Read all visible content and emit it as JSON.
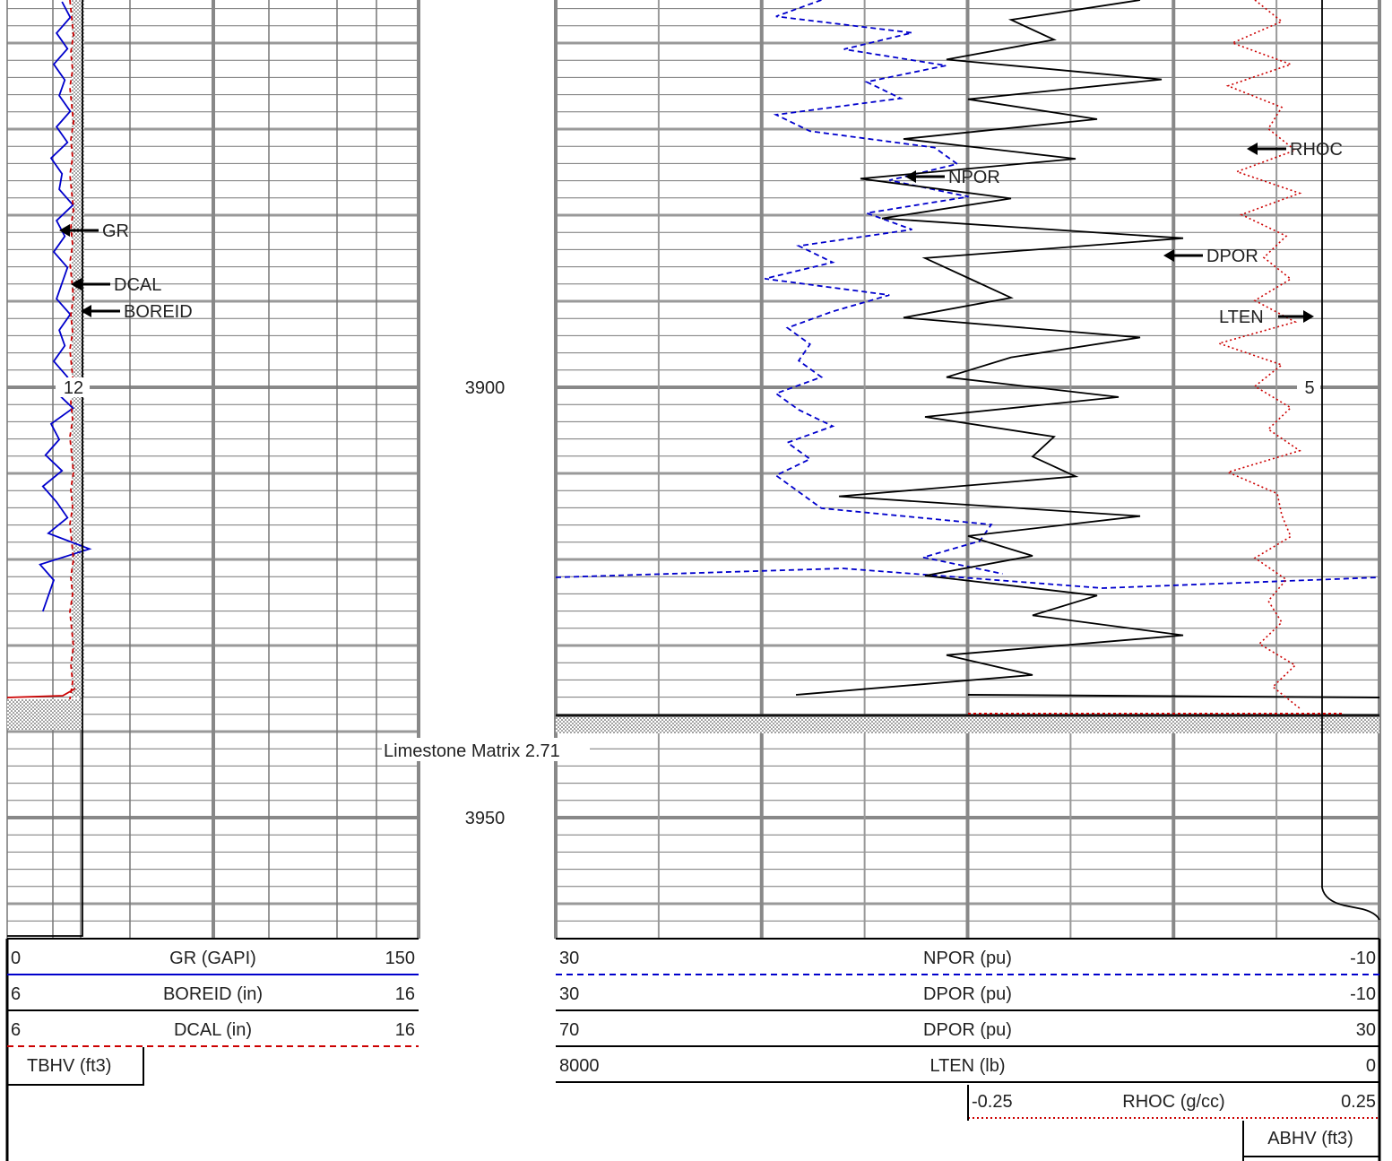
{
  "chart_data": {
    "type": "line",
    "depth_ticks": [
      "3900",
      "3950"
    ],
    "track1": {
      "curves": [
        {
          "name": "GR",
          "label": "GR (GAPI)",
          "min": "0",
          "max": "150",
          "color": "#0000cc",
          "style": "solid"
        },
        {
          "name": "BOREID",
          "label": "BOREID (in)",
          "min": "6",
          "max": "16",
          "color": "#000000",
          "style": "solid"
        },
        {
          "name": "DCAL",
          "label": "DCAL (in)",
          "min": "6",
          "max": "16",
          "color": "#cc0000",
          "style": "dashed"
        }
      ],
      "volume_label": "TBHV (ft3)",
      "tick_label": "12",
      "gr_values": [
        20,
        23,
        18,
        22,
        17,
        21,
        19,
        23,
        18,
        22,
        16,
        20,
        19,
        24,
        18,
        21,
        17,
        22,
        20,
        18,
        23,
        19,
        21,
        17,
        22,
        18,
        24,
        16,
        19,
        14,
        20,
        13,
        18,
        22,
        15,
        30,
        12,
        17,
        15,
        13
      ],
      "caliper_base": 10.8
    },
    "track2": {
      "curves": [
        {
          "name": "NPOR",
          "label": "NPOR (pu)",
          "min": "30",
          "max": "-10",
          "color": "#0000cc",
          "style": "dashed"
        },
        {
          "name": "DPOR",
          "label": "DPOR (pu)",
          "min": "30",
          "max": "-10",
          "color": "#000000",
          "style": "solid"
        },
        {
          "name": "DPOR",
          "label": "DPOR (pu)",
          "min": "70",
          "max": "30",
          "color": "#000000",
          "style": "solid"
        },
        {
          "name": "LTEN",
          "label": "LTEN (lb)",
          "min": "8000",
          "max": "0",
          "color": "#000000",
          "style": "solid"
        },
        {
          "name": "RHOC",
          "label": "RHOC (g/cc)",
          "min": "-0.25",
          "max": "0.25",
          "color": "#cc0000",
          "style": "dotted"
        }
      ],
      "volume_label": "ABHV (ft3)",
      "tick_label": "5",
      "npor_values": [
        20,
        24,
        12,
        18,
        9,
        16,
        13,
        24,
        21,
        10,
        8,
        14,
        7,
        16,
        12,
        22,
        19,
        25,
        14,
        19,
        23,
        21,
        22,
        20,
        24,
        22,
        19,
        23,
        21,
        24,
        22,
        20,
        5,
        6,
        11,
        4
      ],
      "dpor_values": [
        8,
        2,
        4,
        -1,
        9,
        0,
        6,
        -3,
        5,
        -5,
        2,
        -4,
        10,
        -2,
        0,
        2,
        -3,
        8,
        2,
        -1,
        7,
        -2,
        4,
        3,
        5,
        -6,
        8,
        0,
        3,
        -2,
        6,
        3,
        10,
        -1,
        3,
        -8
      ],
      "rhoc_values": [
        0.02,
        0.08,
        -0.03,
        0.1,
        -0.04,
        0.08,
        0.05,
        0.11,
        -0.02,
        0.12,
        -0.01,
        0.09,
        0.04,
        0.1,
        0.02,
        0.11,
        -0.06,
        0.08,
        0.02,
        0.1,
        0.05,
        0.12,
        -0.04,
        0.07,
        0.08,
        0.1,
        0.02,
        0.09,
        0.05,
        0.08,
        0.03,
        0.11,
        0.06,
        0.12
      ]
    },
    "callouts": [
      "GR",
      "DCAL",
      "BOREID",
      "NPOR",
      "DPOR",
      "RHOC",
      "LTEN"
    ],
    "annotation": "Limestone Matrix 2.71"
  }
}
